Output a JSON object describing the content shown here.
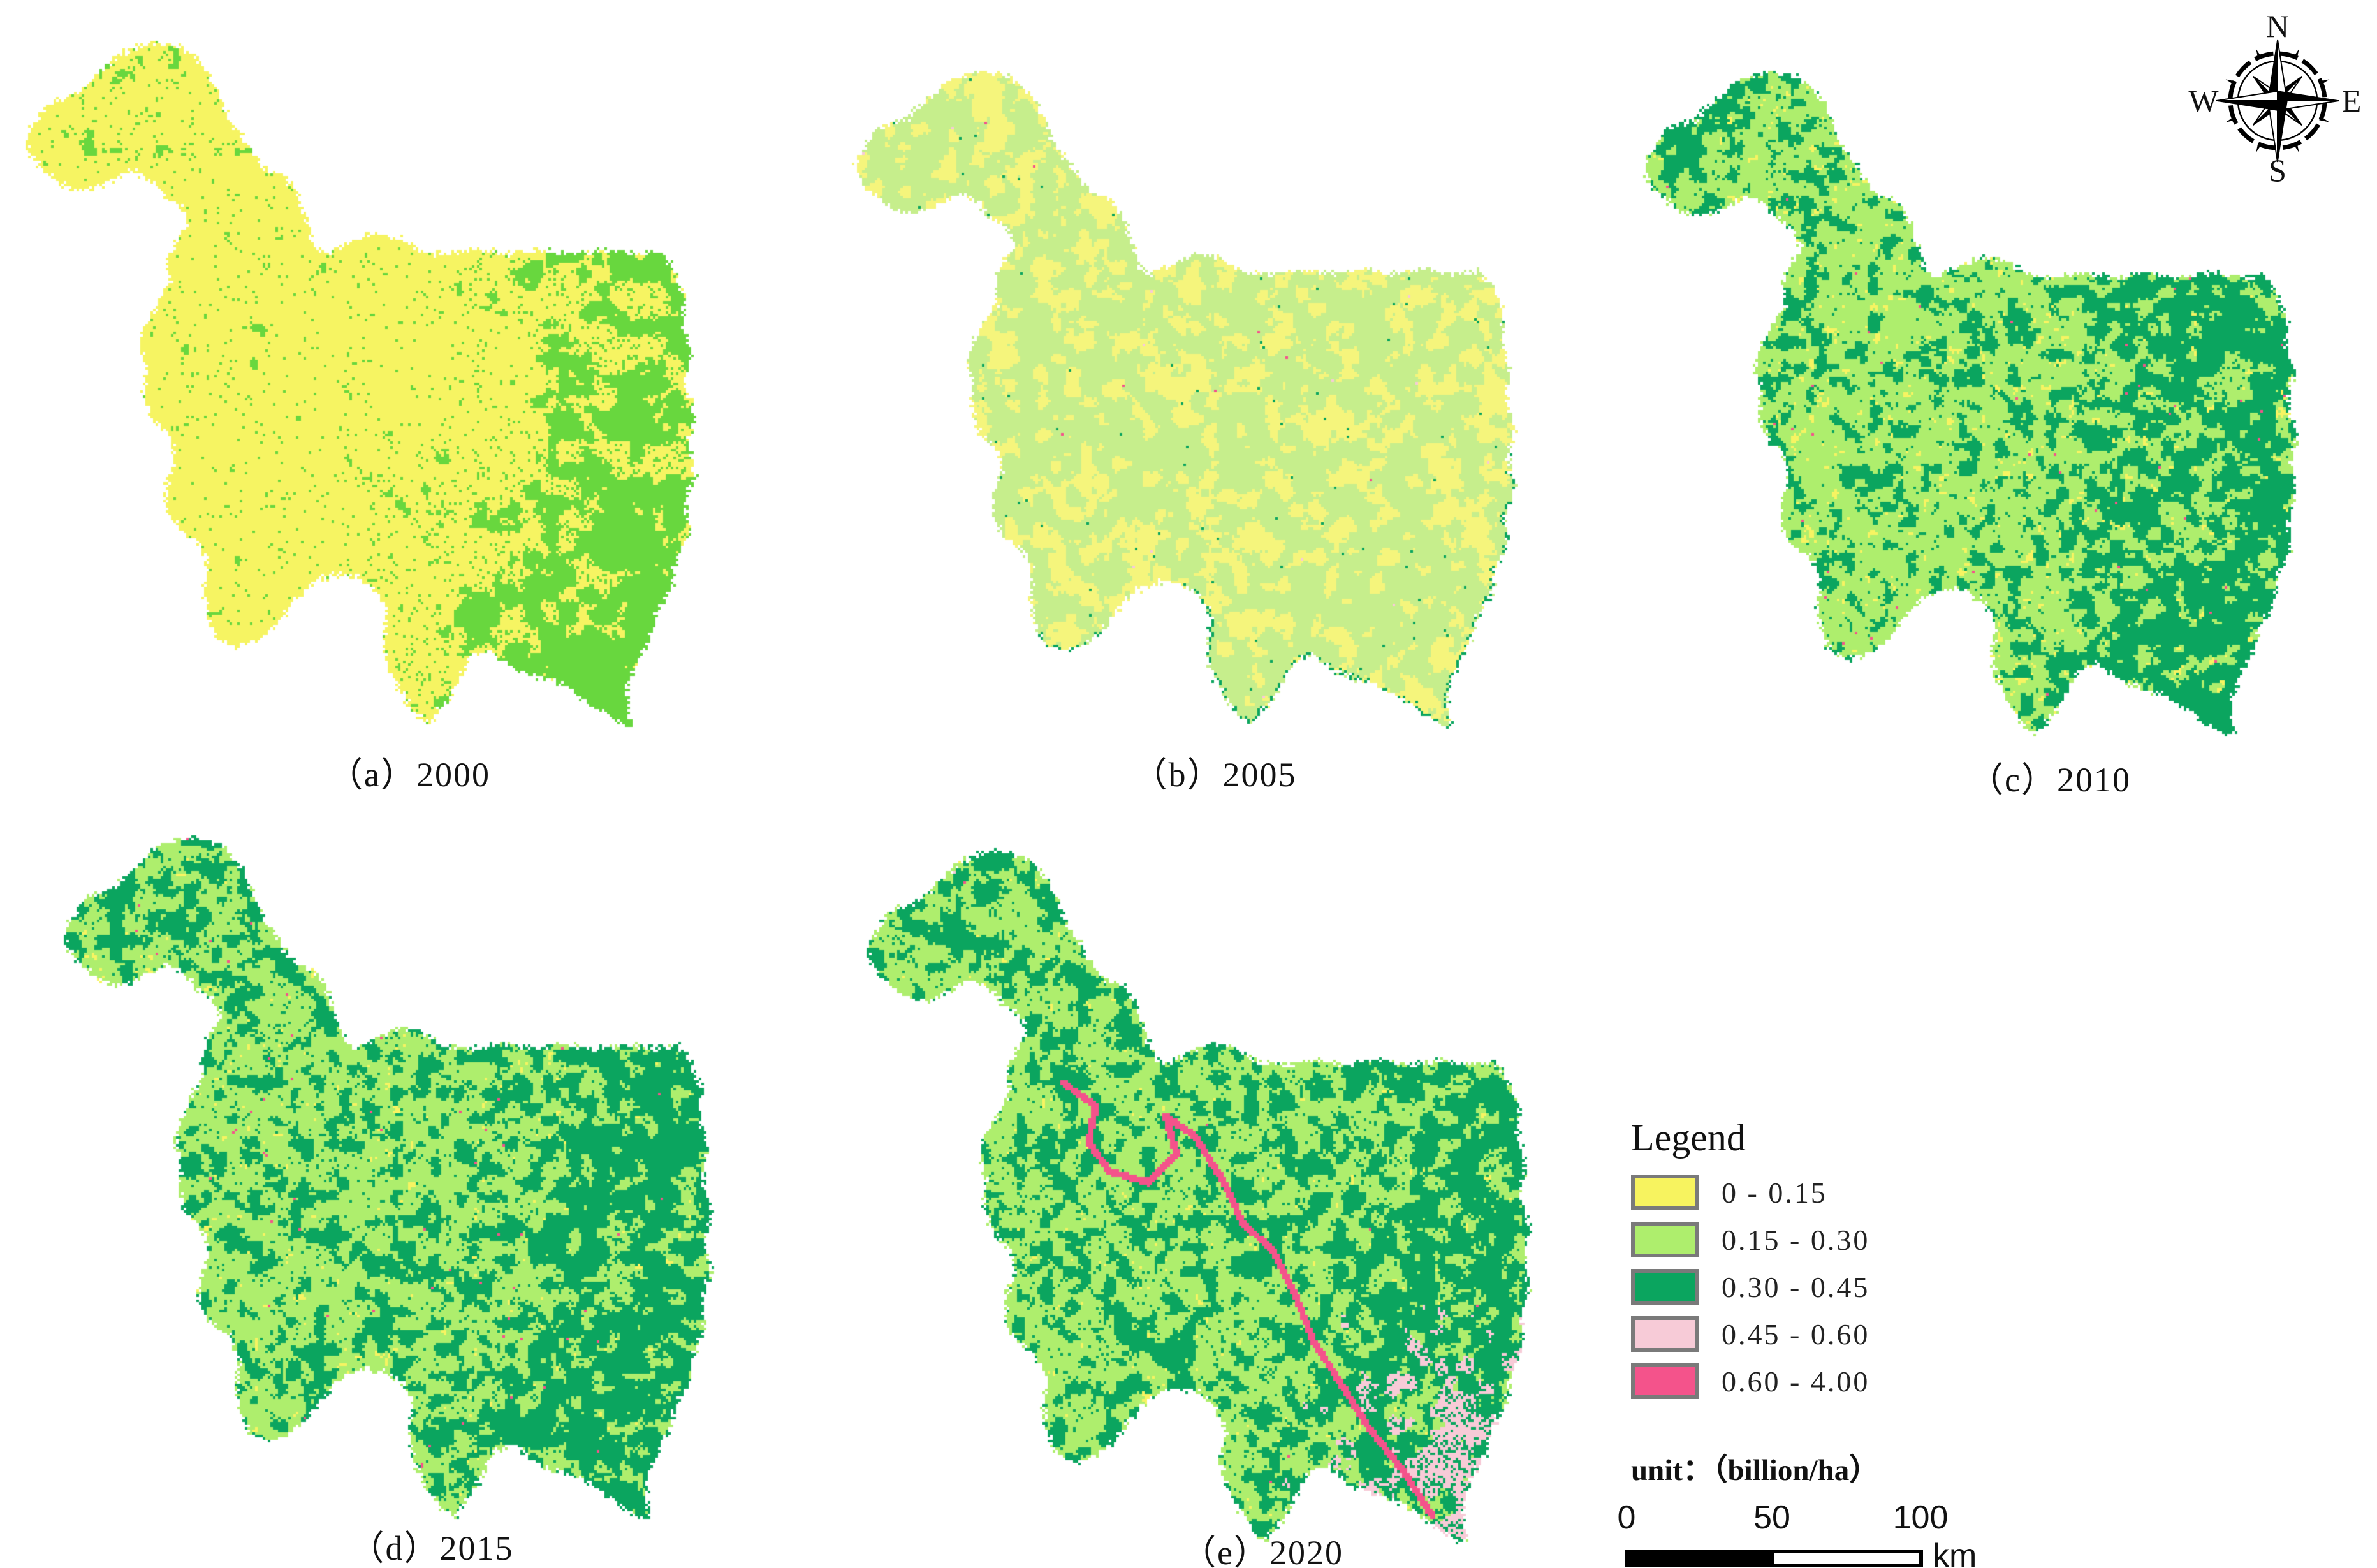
{
  "figure": {
    "panels": [
      {
        "id": "a",
        "year": "2000",
        "caption": "（a）2000",
        "class_share": {
          "0 - 0.15": 0.73,
          "0.15 - 0.30": 0.26,
          "0.30 - 0.45": 0.01
        }
      },
      {
        "id": "b",
        "year": "2005",
        "caption": "（b）2005",
        "class_share": {
          "0 - 0.15": 0.41,
          "0.15 - 0.30": 0.58,
          "0.30 - 0.45": 0.01
        }
      },
      {
        "id": "c",
        "year": "2010",
        "caption": "（c）2010",
        "class_share": {
          "0 - 0.15": 0.08,
          "0.15 - 0.30": 0.56,
          "0.30 - 0.45": 0.35,
          "0.45 - 0.60": 0.01
        }
      },
      {
        "id": "d",
        "year": "2015",
        "caption": "（d）2015",
        "class_share": {
          "0 - 0.15": 0.05,
          "0.15 - 0.30": 0.47,
          "0.30 - 0.45": 0.45,
          "0.45 - 0.60": 0.01,
          "0.60 - 4.00": 0.02
        }
      },
      {
        "id": "e",
        "year": "2020",
        "caption": "（e）2020",
        "class_share": {
          "0 - 0.15": 0.03,
          "0.15 - 0.30": 0.36,
          "0.30 - 0.45": 0.46,
          "0.45 - 0.60": 0.13,
          "0.60 - 4.00": 0.02
        }
      }
    ],
    "legend": {
      "title": "Legend",
      "entries": [
        {
          "label": "0 - 0.15",
          "color": "#f7f35f"
        },
        {
          "label": "0.15 - 0.30",
          "color": "#aeee6d"
        },
        {
          "label": "0.30 - 0.45",
          "color": "#0ba55f"
        },
        {
          "label": "0.45 - 0.60",
          "color": "#f7cbd7"
        },
        {
          "label": "0.60 - 4.00",
          "color": "#f4538b"
        }
      ],
      "unit_label": "unit：（billion/ha）"
    },
    "scalebar": {
      "ticks": [
        "0",
        "50",
        "100"
      ],
      "unit": "km"
    },
    "compass": {
      "n": "N",
      "e": "E",
      "s": "S",
      "w": "W"
    },
    "palette": {
      "yellow": "#f6f462",
      "light_green": "#aeee6d",
      "emerald": "#0ba55f",
      "pink": "#f7cbd7",
      "rose": "#f4538b",
      "map_a_green": "#68d73e",
      "map_b_yellow": "#f5f57c",
      "map_b_green": "#c6ee8c",
      "swatch_border": "#7a7a7a"
    },
    "region_outline": [
      [
        0.018,
        0.187
      ],
      [
        0.05,
        0.134
      ],
      [
        0.09,
        0.123
      ],
      [
        0.117,
        0.099
      ],
      [
        0.149,
        0.068
      ],
      [
        0.189,
        0.053
      ],
      [
        0.227,
        0.055
      ],
      [
        0.257,
        0.07
      ],
      [
        0.279,
        0.097
      ],
      [
        0.293,
        0.125
      ],
      [
        0.302,
        0.152
      ],
      [
        0.315,
        0.169
      ],
      [
        0.338,
        0.204
      ],
      [
        0.36,
        0.229
      ],
      [
        0.383,
        0.235
      ],
      [
        0.401,
        0.257
      ],
      [
        0.414,
        0.297
      ],
      [
        0.428,
        0.332
      ],
      [
        0.441,
        0.345
      ],
      [
        0.468,
        0.332
      ],
      [
        0.509,
        0.315
      ],
      [
        0.541,
        0.319
      ],
      [
        0.577,
        0.341
      ],
      [
        0.617,
        0.345
      ],
      [
        0.658,
        0.337
      ],
      [
        0.703,
        0.344
      ],
      [
        0.748,
        0.337
      ],
      [
        0.793,
        0.344
      ],
      [
        0.838,
        0.338
      ],
      [
        0.883,
        0.344
      ],
      [
        0.914,
        0.338
      ],
      [
        0.932,
        0.363
      ],
      [
        0.95,
        0.403
      ],
      [
        0.946,
        0.442
      ],
      [
        0.959,
        0.482
      ],
      [
        0.95,
        0.522
      ],
      [
        0.964,
        0.566
      ],
      [
        0.955,
        0.61
      ],
      [
        0.964,
        0.649
      ],
      [
        0.95,
        0.689
      ],
      [
        0.955,
        0.729
      ],
      [
        0.937,
        0.768
      ],
      [
        0.932,
        0.803
      ],
      [
        0.91,
        0.839
      ],
      [
        0.901,
        0.874
      ],
      [
        0.883,
        0.905
      ],
      [
        0.869,
        0.94
      ],
      [
        0.869,
        0.971
      ],
      [
        0.874,
        0.997
      ],
      [
        0.842,
        0.984
      ],
      [
        0.806,
        0.958
      ],
      [
        0.77,
        0.936
      ],
      [
        0.734,
        0.927
      ],
      [
        0.703,
        0.914
      ],
      [
        0.676,
        0.891
      ],
      [
        0.649,
        0.9
      ],
      [
        0.631,
        0.931
      ],
      [
        0.613,
        0.962
      ],
      [
        0.595,
        0.984
      ],
      [
        0.59,
        0.993
      ],
      [
        0.568,
        0.98
      ],
      [
        0.545,
        0.944
      ],
      [
        0.527,
        0.909
      ],
      [
        0.523,
        0.874
      ],
      [
        0.53,
        0.839
      ],
      [
        0.514,
        0.808
      ],
      [
        0.486,
        0.79
      ],
      [
        0.455,
        0.786
      ],
      [
        0.423,
        0.799
      ],
      [
        0.396,
        0.826
      ],
      [
        0.374,
        0.856
      ],
      [
        0.347,
        0.878
      ],
      [
        0.315,
        0.887
      ],
      [
        0.288,
        0.874
      ],
      [
        0.275,
        0.843
      ],
      [
        0.27,
        0.808
      ],
      [
        0.275,
        0.773
      ],
      [
        0.261,
        0.742
      ],
      [
        0.234,
        0.724
      ],
      [
        0.216,
        0.693
      ],
      [
        0.218,
        0.658
      ],
      [
        0.23,
        0.627
      ],
      [
        0.223,
        0.596
      ],
      [
        0.198,
        0.574
      ],
      [
        0.185,
        0.539
      ],
      [
        0.189,
        0.504
      ],
      [
        0.18,
        0.473
      ],
      [
        0.191,
        0.438
      ],
      [
        0.207,
        0.407
      ],
      [
        0.223,
        0.385
      ],
      [
        0.218,
        0.354
      ],
      [
        0.23,
        0.326
      ],
      [
        0.248,
        0.303
      ],
      [
        0.236,
        0.275
      ],
      [
        0.212,
        0.262
      ],
      [
        0.194,
        0.238
      ],
      [
        0.167,
        0.229
      ],
      [
        0.137,
        0.244
      ],
      [
        0.108,
        0.257
      ],
      [
        0.077,
        0.253
      ],
      [
        0.05,
        0.233
      ],
      [
        0.027,
        0.211
      ]
    ],
    "river_paths": [
      [
        [
          0.3,
          0.37
        ],
        [
          0.345,
          0.4
        ],
        [
          0.335,
          0.45
        ],
        [
          0.365,
          0.49
        ],
        [
          0.42,
          0.505
        ],
        [
          0.46,
          0.465
        ],
        [
          0.445,
          0.415
        ],
        [
          0.485,
          0.44
        ],
        [
          0.525,
          0.5
        ],
        [
          0.555,
          0.56
        ],
        [
          0.6,
          0.6
        ],
        [
          0.63,
          0.66
        ],
        [
          0.655,
          0.72
        ],
        [
          0.695,
          0.78
        ],
        [
          0.735,
          0.84
        ],
        [
          0.785,
          0.9
        ],
        [
          0.825,
          0.96
        ]
      ],
      [
        [
          0.43,
          0.92
        ],
        [
          0.46,
          0.955
        ],
        [
          0.5,
          0.975
        ]
      ]
    ]
  }
}
